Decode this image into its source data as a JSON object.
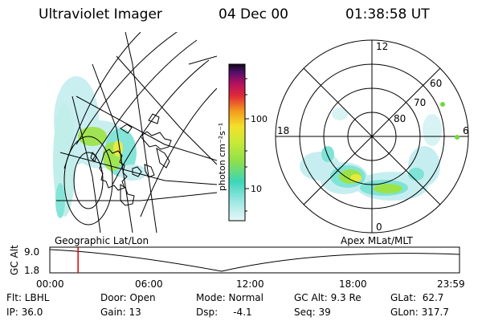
{
  "header": {
    "instrument": "Ultraviolet Imager",
    "date": "04 Dec 00",
    "time": "01:38:58 UT"
  },
  "colorbar": {
    "label": "photon cm⁻²s⁻¹",
    "ticks": [
      "100",
      "10"
    ]
  },
  "polar_plot": {
    "mlt_labels": [
      "12",
      "18",
      "6",
      "0"
    ],
    "lat_labels": [
      "60",
      "70",
      "80"
    ]
  },
  "maps": {
    "left_label": "Geographic Lat/Lon",
    "right_label": "Apex MLat/MLT"
  },
  "altitude_plot": {
    "axis_label": "GC Alt",
    "y_ticks": [
      "9.0",
      "1.8"
    ],
    "x_ticks": [
      "00:00",
      "06:00",
      "12:00",
      "18:00",
      "23:59"
    ],
    "marker_time_fraction": 0.069,
    "marker_color": "#dd0000"
  },
  "info": {
    "flt": "Flt: LBHL",
    "ip": "IP: 36.0",
    "door": "Door: Open",
    "gain": "Gain: 13",
    "mode": "Mode: Normal",
    "dsp": "Dsp:     -4.1",
    "gc_alt": "GC Alt: 9.3 Re",
    "seq": "Seq: 39",
    "glat": "GLat:  62.7",
    "glon": "GLon: 317.7"
  },
  "colors": {
    "aurora_green": "#9be34a",
    "aurora_yellow": "#e8ea3a",
    "aurora_cyan": "#7fe3d6",
    "aurora_pale": "#c6eef0",
    "marker": "#dd0000"
  }
}
